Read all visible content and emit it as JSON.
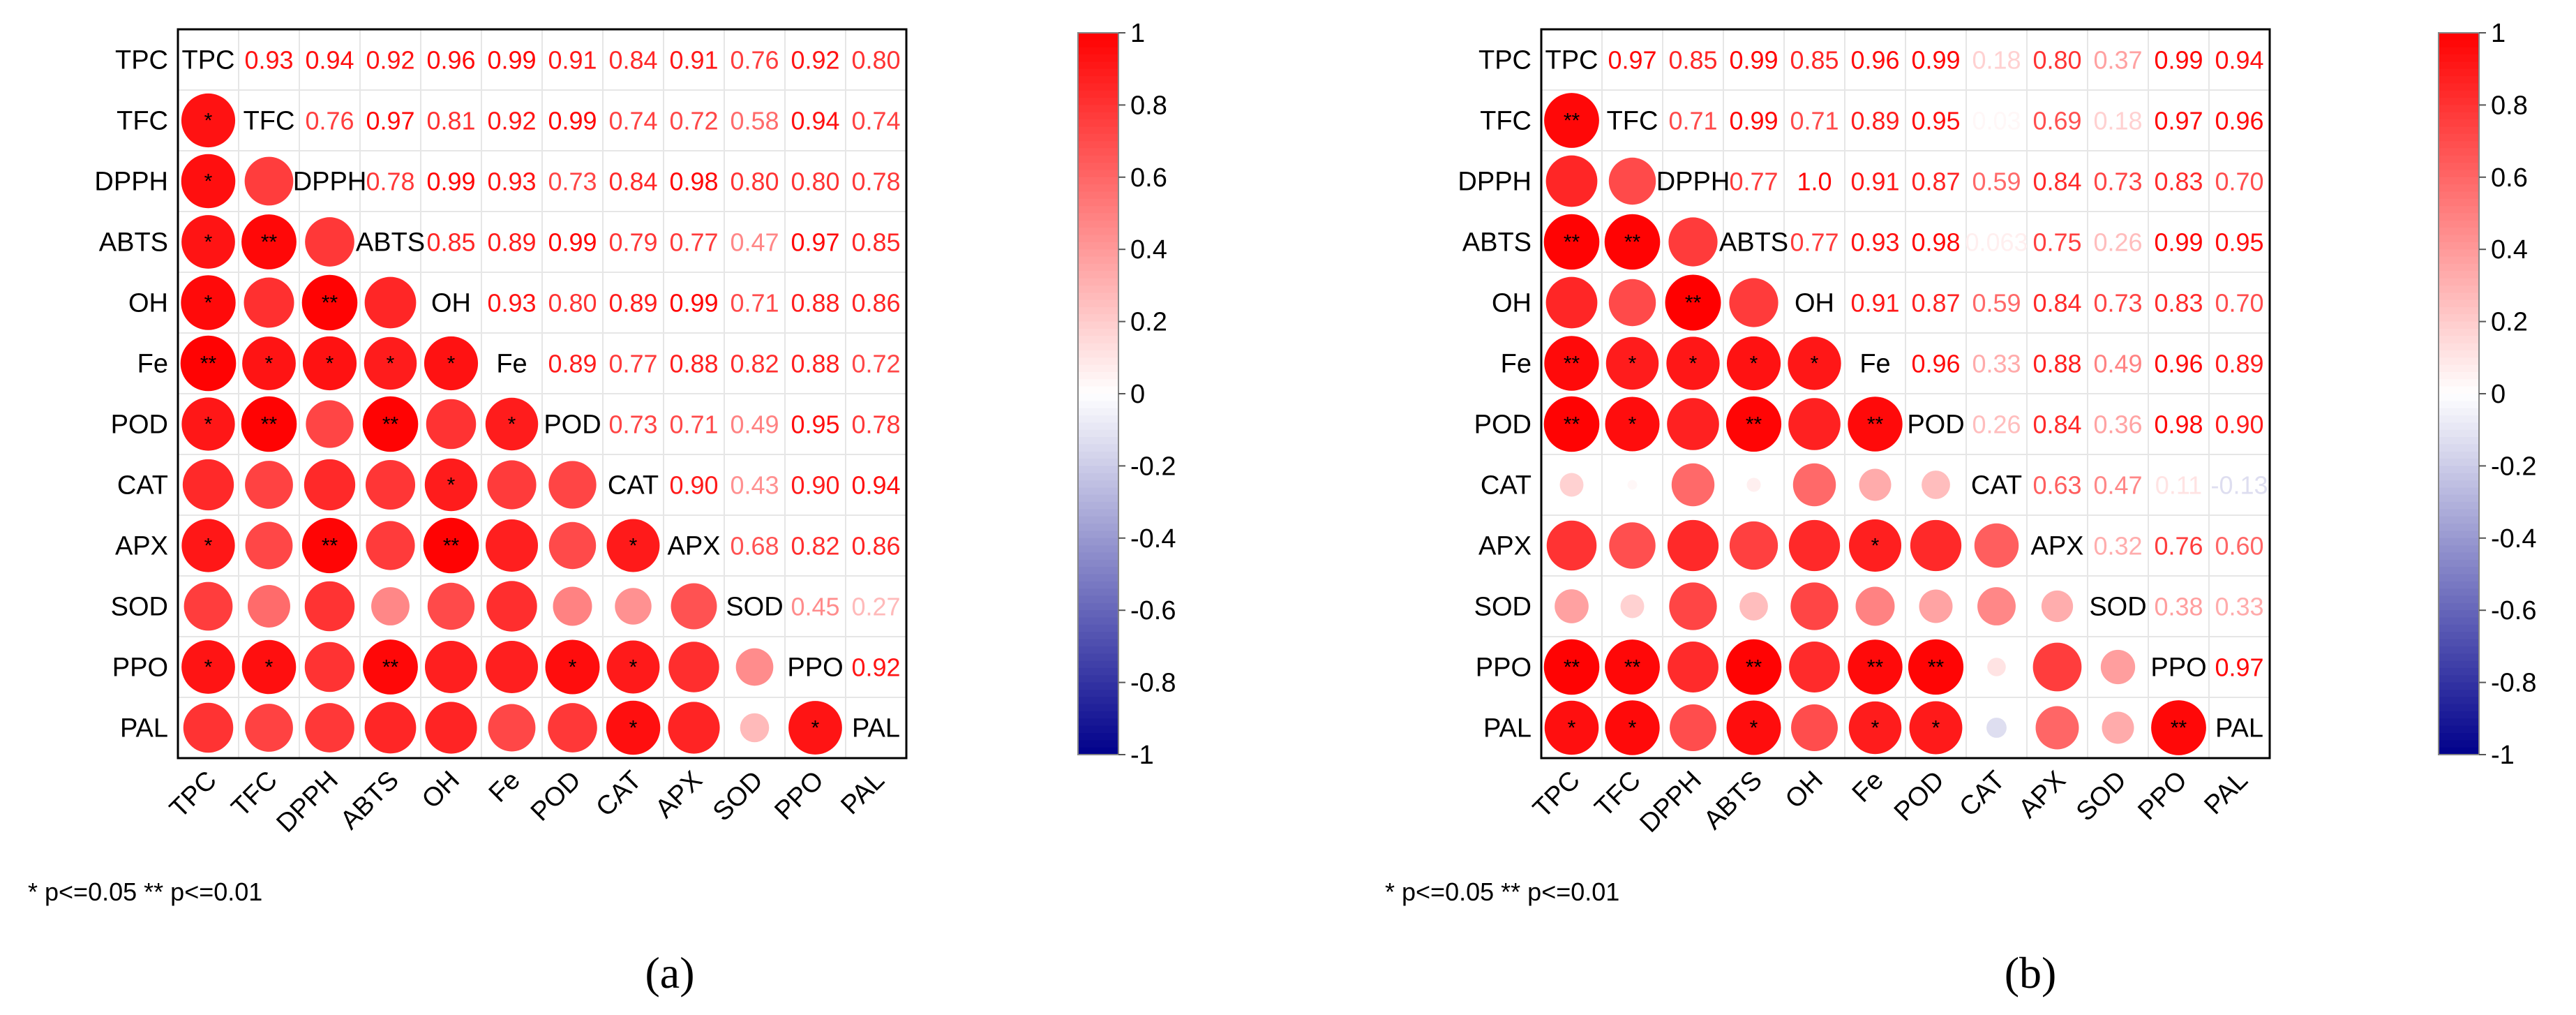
{
  "chart_data": [
    {
      "type": "heatmap",
      "subtype": "correlation-matrix",
      "panel_label": "(a)",
      "footnote": "* p<=0.05  ** p<=0.01",
      "variables": [
        "TPC",
        "TFC",
        "DPPH",
        "ABTS",
        "OH",
        "Fe",
        "POD",
        "CAT",
        "APX",
        "SOD",
        "PPO",
        "PAL"
      ],
      "upper_values": [
        [
          "",
          "0.93",
          "0.94",
          "0.92",
          "0.96",
          "0.99",
          "0.91",
          "0.84",
          "0.91",
          "0.76",
          "0.92",
          "0.80"
        ],
        [
          "",
          "",
          "0.76",
          "0.97",
          "0.81",
          "0.92",
          "0.99",
          "0.74",
          "0.72",
          "0.58",
          "0.94",
          "0.74"
        ],
        [
          "",
          "",
          "",
          "0.78",
          "0.99",
          "0.93",
          "0.73",
          "0.84",
          "0.98",
          "0.80",
          "0.80",
          "0.78"
        ],
        [
          "",
          "",
          "",
          "",
          "0.85",
          "0.89",
          "0.99",
          "0.79",
          "0.77",
          "0.47",
          "0.97",
          "0.85"
        ],
        [
          "",
          "",
          "",
          "",
          "",
          "0.93",
          "0.80",
          "0.89",
          "0.99",
          "0.71",
          "0.88",
          "0.86"
        ],
        [
          "",
          "",
          "",
          "",
          "",
          "",
          "0.89",
          "0.77",
          "0.88",
          "0.82",
          "0.88",
          "0.72"
        ],
        [
          "",
          "",
          "",
          "",
          "",
          "",
          "",
          "0.73",
          "0.71",
          "0.49",
          "0.95",
          "0.78"
        ],
        [
          "",
          "",
          "",
          "",
          "",
          "",
          "",
          "",
          "0.90",
          "0.43",
          "0.90",
          "0.94"
        ],
        [
          "",
          "",
          "",
          "",
          "",
          "",
          "",
          "",
          "",
          "0.68",
          "0.82",
          "0.86"
        ],
        [
          "",
          "",
          "",
          "",
          "",
          "",
          "",
          "",
          "",
          "",
          "0.45",
          "0.27"
        ],
        [
          "",
          "",
          "",
          "",
          "",
          "",
          "",
          "",
          "",
          "",
          "",
          "0.92"
        ],
        [
          "",
          "",
          "",
          "",
          "",
          "",
          "",
          "",
          "",
          "",
          "",
          ""
        ]
      ],
      "significance": [
        [
          "",
          "",
          "",
          "",
          "",
          "",
          "",
          "",
          "",
          "",
          "",
          ""
        ],
        [
          "*",
          "",
          "",
          "",
          "",
          "",
          "",
          "",
          "",
          "",
          "",
          ""
        ],
        [
          "*",
          "",
          "",
          "",
          "",
          "",
          "",
          "",
          "",
          "",
          "",
          ""
        ],
        [
          "*",
          "**",
          "",
          "",
          "",
          "",
          "",
          "",
          "",
          "",
          "",
          ""
        ],
        [
          "*",
          "",
          "**",
          "",
          "",
          "",
          "",
          "",
          "",
          "",
          "",
          ""
        ],
        [
          "**",
          "*",
          "*",
          "*",
          "*",
          "",
          "",
          "",
          "",
          "",
          "",
          ""
        ],
        [
          "*",
          "**",
          "",
          "**",
          "",
          "*",
          "",
          "",
          "",
          "",
          "",
          ""
        ],
        [
          "",
          "",
          "",
          "",
          "*",
          "",
          "",
          "",
          "",
          "",
          "",
          ""
        ],
        [
          "*",
          "",
          "**",
          "",
          "**",
          "",
          "",
          "*",
          "",
          "",
          "",
          ""
        ],
        [
          "",
          "",
          "",
          "",
          "",
          "",
          "",
          "",
          "",
          "",
          "",
          ""
        ],
        [
          "*",
          "*",
          "",
          "**",
          "",
          "",
          "*",
          "*",
          "",
          "",
          "",
          ""
        ],
        [
          "",
          "",
          "",
          "",
          "",
          "",
          "",
          "*",
          "",
          "",
          "*",
          ""
        ]
      ],
      "colorbar": {
        "range": [
          -1,
          1
        ],
        "ticks": [
          "1",
          "0.8",
          "0.6",
          "0.4",
          "0.2",
          "0",
          "-0.2",
          "-0.4",
          "-0.6",
          "-0.8",
          "-1"
        ]
      },
      "colors": {
        "positive": "#ff0000",
        "neutral": "#ffffff",
        "negative": "#00008b",
        "frame": "#000000",
        "grid": "#e6e6e6"
      }
    },
    {
      "type": "heatmap",
      "subtype": "correlation-matrix",
      "panel_label": "(b)",
      "footnote": "* p<=0.05  ** p<=0.01",
      "variables": [
        "TPC",
        "TFC",
        "DPPH",
        "ABTS",
        "OH",
        "Fe",
        "POD",
        "CAT",
        "APX",
        "SOD",
        "PPO",
        "PAL"
      ],
      "upper_values": [
        [
          "",
          "0.97",
          "0.85",
          "0.99",
          "0.85",
          "0.96",
          "0.99",
          "0.18",
          "0.80",
          "0.37",
          "0.99",
          "0.94"
        ],
        [
          "",
          "",
          "0.71",
          "0.99",
          "0.71",
          "0.89",
          "0.95",
          "0.03",
          "0.69",
          "0.18",
          "0.97",
          "0.96"
        ],
        [
          "",
          "",
          "",
          "0.77",
          "1.0",
          "0.91",
          "0.87",
          "0.59",
          "0.84",
          "0.73",
          "0.83",
          "0.70"
        ],
        [
          "",
          "",
          "",
          "",
          "0.77",
          "0.93",
          "0.98",
          "0.063",
          "0.75",
          "0.26",
          "0.99",
          "0.95"
        ],
        [
          "",
          "",
          "",
          "",
          "",
          "0.91",
          "0.87",
          "0.59",
          "0.84",
          "0.73",
          "0.83",
          "0.70"
        ],
        [
          "",
          "",
          "",
          "",
          "",
          "",
          "0.96",
          "0.33",
          "0.88",
          "0.49",
          "0.96",
          "0.89"
        ],
        [
          "",
          "",
          "",
          "",
          "",
          "",
          "",
          "0.26",
          "0.84",
          "0.36",
          "0.98",
          "0.90"
        ],
        [
          "",
          "",
          "",
          "",
          "",
          "",
          "",
          "",
          "0.63",
          "0.47",
          "0.11",
          "-0.13"
        ],
        [
          "",
          "",
          "",
          "",
          "",
          "",
          "",
          "",
          "",
          "0.32",
          "0.76",
          "0.60"
        ],
        [
          "",
          "",
          "",
          "",
          "",
          "",
          "",
          "",
          "",
          "",
          "0.38",
          "0.33"
        ],
        [
          "",
          "",
          "",
          "",
          "",
          "",
          "",
          "",
          "",
          "",
          "",
          "0.97"
        ],
        [
          "",
          "",
          "",
          "",
          "",
          "",
          "",
          "",
          "",
          "",
          "",
          ""
        ]
      ],
      "significance": [
        [
          "",
          "",
          "",
          "",
          "",
          "",
          "",
          "",
          "",
          "",
          "",
          ""
        ],
        [
          "**",
          "",
          "",
          "",
          "",
          "",
          "",
          "",
          "",
          "",
          "",
          ""
        ],
        [
          "",
          "",
          "",
          "",
          "",
          "",
          "",
          "",
          "",
          "",
          "",
          ""
        ],
        [
          "**",
          "**",
          "",
          "",
          "",
          "",
          "",
          "",
          "",
          "",
          "",
          ""
        ],
        [
          "",
          "",
          "**",
          "",
          "",
          "",
          "",
          "",
          "",
          "",
          "",
          ""
        ],
        [
          "**",
          "*",
          "*",
          "*",
          "*",
          "",
          "",
          "",
          "",
          "",
          "",
          ""
        ],
        [
          "**",
          "*",
          "",
          "**",
          "",
          "**",
          "",
          "",
          "",
          "",
          "",
          ""
        ],
        [
          "",
          "",
          "",
          "",
          "",
          "",
          "",
          "",
          "",
          "",
          "",
          ""
        ],
        [
          "",
          "",
          "",
          "",
          "",
          "*",
          "",
          "",
          "",
          "",
          "",
          ""
        ],
        [
          "",
          "",
          "",
          "",
          "",
          "",
          "",
          "",
          "",
          "",
          "",
          ""
        ],
        [
          "**",
          "**",
          "",
          "**",
          "",
          "**",
          "**",
          "",
          "",
          "",
          "",
          ""
        ],
        [
          "*",
          "*",
          "",
          "*",
          "",
          "*",
          "*",
          "",
          "",
          "",
          "**",
          ""
        ]
      ],
      "colorbar": {
        "range": [
          -1,
          1
        ],
        "ticks": [
          "1",
          "0.8",
          "0.6",
          "0.4",
          "0.2",
          "0",
          "-0.2",
          "-0.4",
          "-0.6",
          "-0.8",
          "-1"
        ]
      },
      "colors": {
        "positive": "#ff0000",
        "neutral": "#ffffff",
        "negative": "#00008b",
        "frame": "#000000",
        "grid": "#e6e6e6"
      }
    }
  ]
}
